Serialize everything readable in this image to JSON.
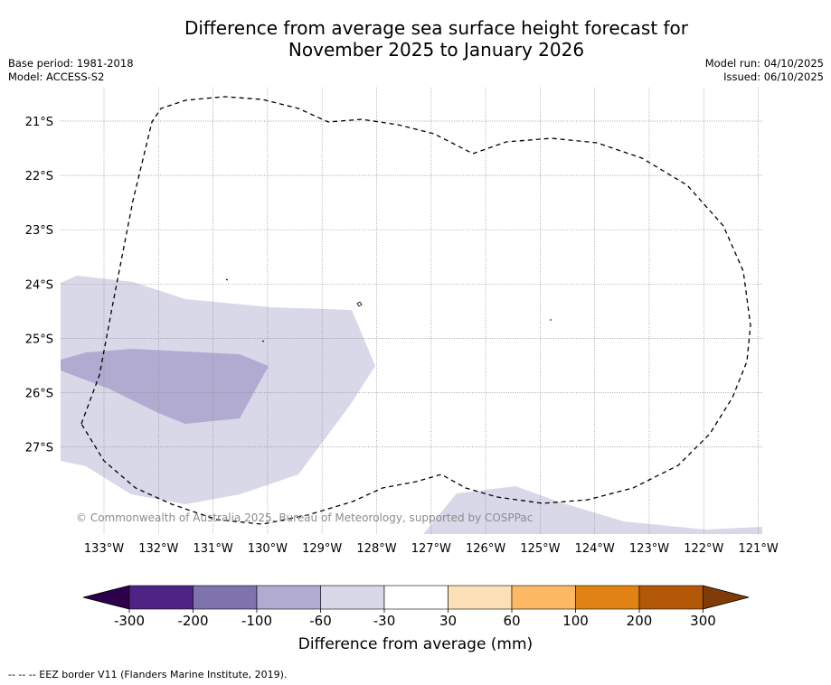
{
  "title": {
    "line1": "Difference from average sea surface height forecast for",
    "line2": "November 2025 to January 2026"
  },
  "meta": {
    "base_period": "Base period: 1981-2018",
    "model": "Model: ACCESS-S2",
    "model_run": "Model run: 04/10/2025",
    "issued": "Issued: 06/10/2025"
  },
  "map": {
    "lat_labels": [
      "21°S",
      "22°S",
      "23°S",
      "24°S",
      "25°S",
      "26°S",
      "27°S"
    ],
    "lon_labels": [
      "133°W",
      "132°W",
      "131°W",
      "130°W",
      "129°W",
      "128°W",
      "127°W",
      "126°W",
      "125°W",
      "124°W",
      "123°W",
      "122°W",
      "121°W"
    ],
    "copyright": "© Commonwealth of Australia 2025, Bureau of Meteorology, supported by COSPPac",
    "fill_colors": {
      "light_lilac": "#d8d8e9",
      "mid_lilac": "#b1abd2"
    }
  },
  "colorbar": {
    "ticks": [
      "-300",
      "-200",
      "-100",
      "-60",
      "-30",
      "30",
      "60",
      "100",
      "200",
      "300"
    ],
    "colors": [
      "#4f2385",
      "#7f73ad",
      "#b1abd2",
      "#d8d8e9",
      "#ffffff",
      "#fee0b6",
      "#fdb863",
      "#e08214",
      "#b35806"
    ],
    "under_color": "#2d004b",
    "over_color": "#7f3b08",
    "label": "Difference from average (mm)"
  },
  "footnote": "--  --  -- EEZ border V11 (Flanders Marine Institute, 2019)."
}
